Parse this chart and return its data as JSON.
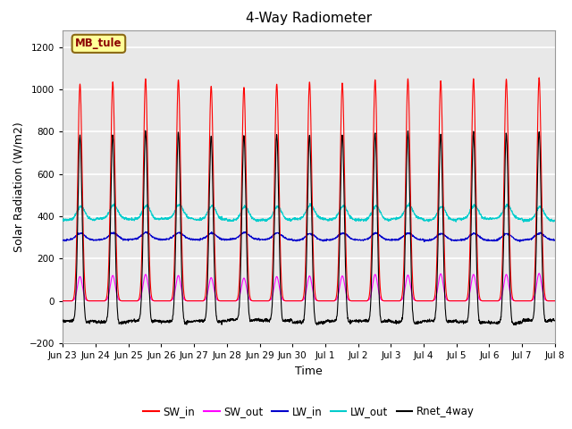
{
  "title": "4-Way Radiometer",
  "xlabel": "Time",
  "ylabel": "Solar Radiation (W/m2)",
  "ylim": [
    -200,
    1280
  ],
  "yticks": [
    -200,
    0,
    200,
    400,
    600,
    800,
    1000,
    1200
  ],
  "fig_bg_color": "#ffffff",
  "plot_bg_color": "#e8e8e8",
  "grid_color": "#ffffff",
  "station_label": "MB_tule",
  "station_label_color": "#8B0000",
  "station_box_color": "#FFFF99",
  "station_box_edge": "#8B6914",
  "legend_entries": [
    "SW_in",
    "SW_out",
    "LW_in",
    "LW_out",
    "Rnet_4way"
  ],
  "line_colors": {
    "SW_in": "#ff0000",
    "SW_out": "#ff00ff",
    "LW_in": "#0000cc",
    "LW_out": "#00cccc",
    "Rnet_4way": "#000000"
  },
  "num_days": 15,
  "xtick_labels": [
    "Jun 23",
    "Jun 24",
    "Jun 25",
    "Jun 26",
    "Jun 27",
    "Jun 28",
    "Jun 29",
    "Jun 30",
    "Jul 1",
    "Jul 2",
    "Jul 3",
    "Jul 4",
    "Jul 5",
    "Jul 6",
    "Jul 7",
    "Jul 8"
  ]
}
